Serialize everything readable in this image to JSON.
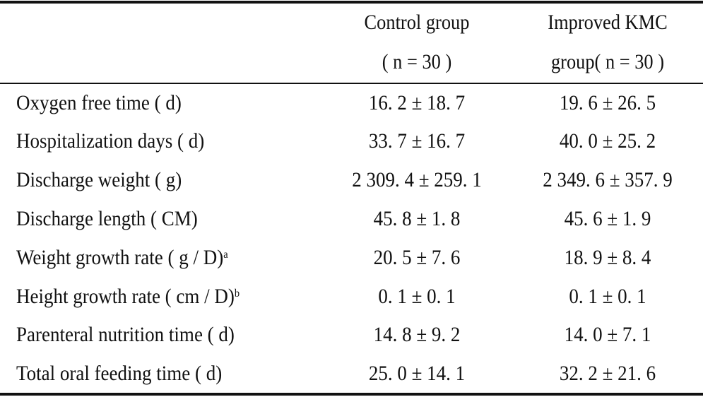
{
  "table": {
    "header": {
      "col1_line1": "Control group",
      "col1_line2": "( n = 30 )",
      "col2_line1": "Improved KMC",
      "col2_line2": "group( n = 30 )"
    },
    "rows": [
      {
        "label": "Oxygen free time ( d)",
        "sup": "",
        "control": "16. 2 ± 18. 7",
        "improved": "19. 6 ± 26. 5"
      },
      {
        "label": "Hospitalization days ( d)",
        "sup": "",
        "control": "33. 7 ± 16. 7",
        "improved": "40. 0 ± 25. 2"
      },
      {
        "label": "Discharge weight ( g)",
        "sup": "",
        "control": "2 309. 4 ± 259. 1",
        "improved": "2 349. 6 ± 357. 9"
      },
      {
        "label": "Discharge length ( CM)",
        "sup": "",
        "control": "45. 8 ± 1. 8",
        "improved": "45. 6 ± 1. 9"
      },
      {
        "label": "Weight growth rate ( g / D)",
        "sup": "a",
        "control": "20. 5 ± 7. 6",
        "improved": "18. 9 ± 8. 4"
      },
      {
        "label": "Height growth rate ( cm / D)",
        "sup": "b",
        "control": "0. 1 ± 0. 1",
        "improved": "0. 1 ± 0. 1"
      },
      {
        "label": "Parenteral nutrition time ( d)",
        "sup": "",
        "control": "14. 8 ± 9. 2",
        "improved": "14. 0 ± 7. 1"
      },
      {
        "label": "Total oral feeding time ( d)",
        "sup": "",
        "control": "25. 0 ± 14. 1",
        "improved": "32. 2 ± 21. 6"
      }
    ]
  }
}
